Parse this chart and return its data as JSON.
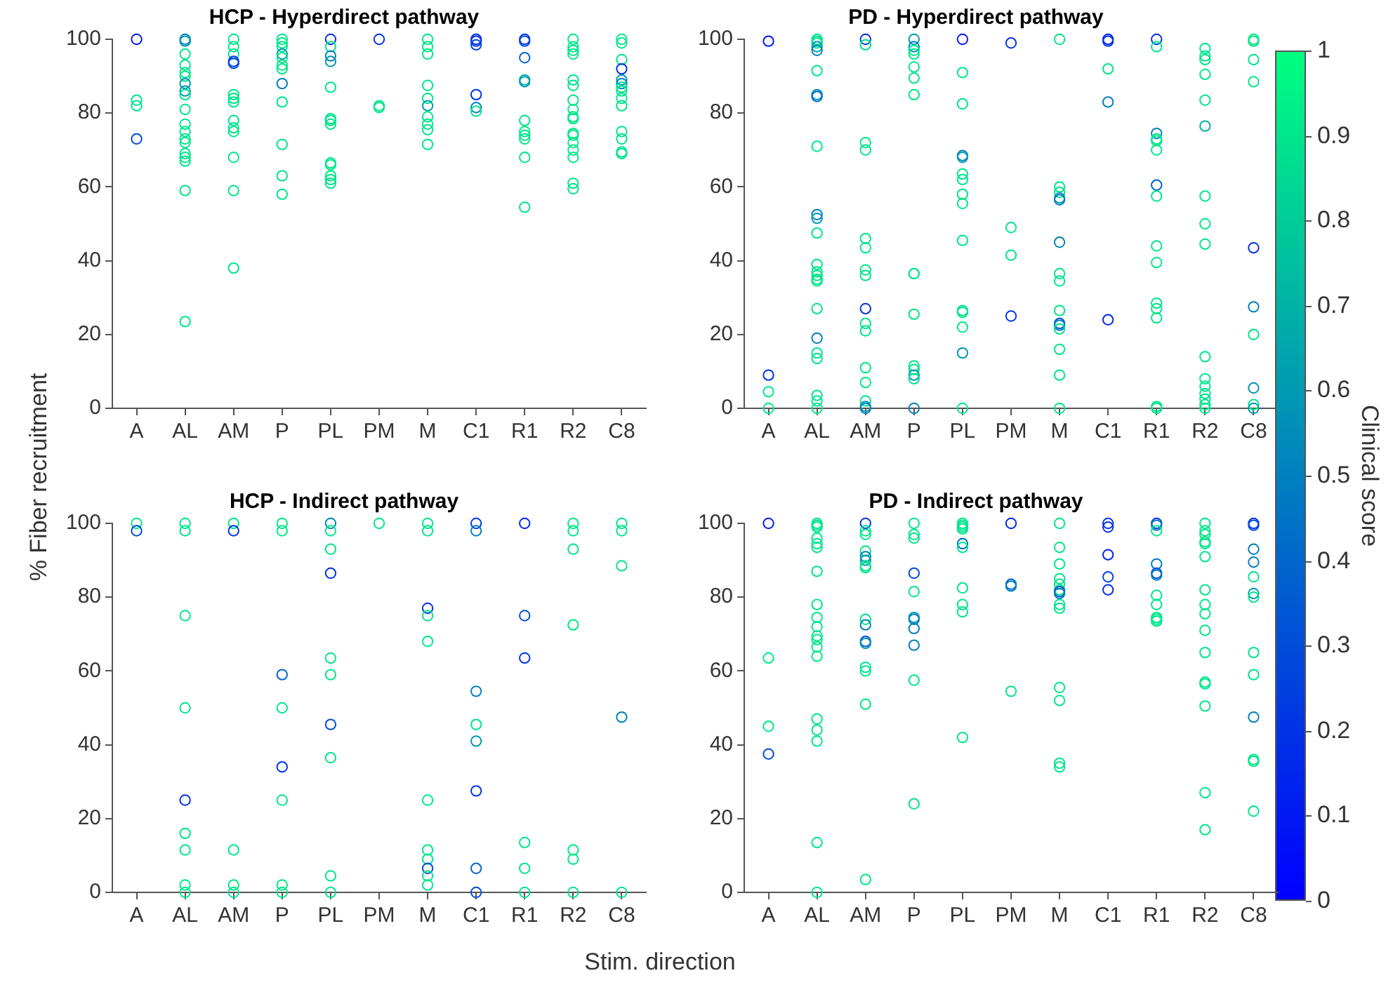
{
  "chart_data": [
    {
      "type": "scatter",
      "title": "HCP - Hyperdirect pathway",
      "ylabel": "% Fiber recruitment",
      "categories": [
        "A",
        "AL",
        "AM",
        "P",
        "PL",
        "PM",
        "M",
        "C1",
        "R1",
        "R2",
        "C8"
      ],
      "ylim": [
        0,
        100
      ],
      "yticks": [
        0,
        20,
        40,
        60,
        80,
        100
      ],
      "marker": "circle",
      "series": [
        {
          "type": "scatter",
          "x": [
            "A",
            "A",
            "A",
            "A",
            "AL",
            "AL",
            "AL",
            "AL",
            "AL",
            "AL",
            "AL",
            "AL",
            "AL",
            "AL",
            "AL",
            "AL",
            "AL",
            "AL",
            "AL",
            "AL",
            "AL",
            "AL",
            "AL",
            "AM",
            "AM",
            "AM",
            "AM",
            "AM",
            "AM",
            "AM",
            "AM",
            "AM",
            "AM",
            "AM",
            "AM",
            "AM",
            "AM",
            "P",
            "P",
            "P",
            "P",
            "P",
            "P",
            "P",
            "P",
            "P",
            "P",
            "P",
            "P",
            "PL",
            "PL",
            "PL",
            "PL",
            "PL",
            "PL",
            "PL",
            "PL",
            "PL",
            "PL",
            "PL",
            "PL",
            "PL",
            "PM",
            "PM",
            "PM",
            "M",
            "M",
            "M",
            "M",
            "M",
            "M",
            "M",
            "M",
            "M",
            "M",
            "C1",
            "C1",
            "C1",
            "C1",
            "C1",
            "C1",
            "R1",
            "R1",
            "R1",
            "R1",
            "R1",
            "R1",
            "R1",
            "R1",
            "R1",
            "R1",
            "R1",
            "R2",
            "R2",
            "R2",
            "R2",
            "R2",
            "R2",
            "R2",
            "R2",
            "R2",
            "R2",
            "R2",
            "R2",
            "R2",
            "R2",
            "R2",
            "R2",
            "R2",
            "C8",
            "C8",
            "C8",
            "C8",
            "C8",
            "C8",
            "C8",
            "C8",
            "C8",
            "C8",
            "C8",
            "C8",
            "C8",
            "C8"
          ],
          "values": [
            100,
            83.5,
            82,
            73,
            100,
            99.5,
            96,
            93,
            91,
            90,
            88,
            86,
            85,
            81,
            77,
            75,
            73,
            72,
            69,
            68,
            67,
            59,
            23.5,
            100,
            98,
            96,
            94,
            93.5,
            85,
            84,
            83,
            78,
            76,
            75,
            68,
            59,
            38,
            100,
            99,
            98,
            96,
            95,
            93,
            92,
            88,
            83,
            71.5,
            63,
            58,
            100,
            98,
            95.5,
            94,
            87,
            78.5,
            78,
            77,
            66.5,
            66,
            63,
            62,
            61,
            100,
            82,
            81.5,
            100,
            98,
            96,
            87.5,
            84,
            82,
            79,
            77,
            75.5,
            71.5,
            100,
            99.5,
            98.5,
            85,
            81.5,
            80.5,
            100,
            99.5,
            95,
            89,
            88.5,
            78,
            75,
            74,
            73,
            68,
            54.5,
            100,
            98,
            97,
            96,
            89,
            87.5,
            83.5,
            81,
            79,
            78.5,
            74.5,
            74,
            72,
            70,
            68,
            61,
            59.5,
            100,
            99,
            94.5,
            92,
            89,
            88,
            87,
            86,
            84,
            82,
            75,
            73,
            69.5,
            69
          ],
          "colors": [
            "#001af2",
            "#00e68c",
            "#00e68c",
            "#004dd9",
            "#0080bf",
            "#0099b3",
            "#00e68c",
            "#00e68c",
            "#00e68c",
            "#00e68c",
            "#0099b3",
            "#0099b3",
            "#00e68c",
            "#00e68c",
            "#00e68c",
            "#00e68c",
            "#00e68c",
            "#00e68c",
            "#00e68c",
            "#00e68c",
            "#00e68c",
            "#00e68c",
            "#00e68c",
            "#00e68c",
            "#00e68c",
            "#00e68c",
            "#0033e6",
            "#004dd9",
            "#00e68c",
            "#00e68c",
            "#00e68c",
            "#00e68c",
            "#00e68c",
            "#00e68c",
            "#00e68c",
            "#00e68c",
            "#00e68c",
            "#00e68c",
            "#00e68c",
            "#00e68c",
            "#0099b3",
            "#00e68c",
            "#00e68c",
            "#00e68c",
            "#0080bf",
            "#00e68c",
            "#00e68c",
            "#00e68c",
            "#00e68c",
            "#0033e6",
            "#00e68c",
            "#0080bf",
            "#0099b3",
            "#00e68c",
            "#00e68c",
            "#00e68c",
            "#00e68c",
            "#00e68c",
            "#00e68c",
            "#00e68c",
            "#00e68c",
            "#00e68c",
            "#0033e6",
            "#00e68c",
            "#00e68c",
            "#00e68c",
            "#00e68c",
            "#00e68c",
            "#00e68c",
            "#00e68c",
            "#0099b3",
            "#00e68c",
            "#00e68c",
            "#00e68c",
            "#00e68c",
            "#0026ec",
            "#0033e6",
            "#004dd9",
            "#0033e6",
            "#0080bf",
            "#00e68c",
            "#0033e6",
            "#004dd9",
            "#0066cc",
            "#00b3a6",
            "#0099b3",
            "#00e68c",
            "#00e68c",
            "#00e68c",
            "#00e68c",
            "#00e68c",
            "#00e68c",
            "#00e68c",
            "#00e68c",
            "#00e68c",
            "#00e68c",
            "#00e68c",
            "#00e68c",
            "#00e68c",
            "#00e68c",
            "#00e68c",
            "#00e68c",
            "#00e68c",
            "#00e68c",
            "#00e68c",
            "#00e68c",
            "#00e68c",
            "#00e68c",
            "#00e68c",
            "#00e68c",
            "#00e68c",
            "#00e68c",
            "#0033e6",
            "#0099b3",
            "#0080bf",
            "#00e68c",
            "#00e68c",
            "#00e68c",
            "#00e68c",
            "#00e68c",
            "#00e68c",
            "#00e68c",
            "#00e68c"
          ]
        }
      ]
    },
    {
      "type": "scatter",
      "title": "PD - Hyperdirect pathway",
      "clabel": "Clinical score",
      "clim": [
        0,
        1
      ],
      "cticks": [
        0,
        0.1,
        0.2,
        0.3,
        0.4,
        0.5,
        0.6,
        0.7,
        0.8,
        0.9,
        1
      ],
      "categories": [
        "A",
        "AL",
        "AM",
        "P",
        "PL",
        "PM",
        "M",
        "C1",
        "R1",
        "R2",
        "C8"
      ],
      "ylim": [
        0,
        100
      ],
      "yticks": [
        0,
        20,
        40,
        60,
        80,
        100
      ],
      "marker": "circle",
      "series": [
        {
          "type": "scatter",
          "x": [
            "A",
            "A",
            "A",
            "A",
            "AL",
            "AL",
            "AL",
            "AL",
            "AL",
            "AL",
            "AL",
            "AL",
            "AL",
            "AL",
            "AL",
            "AL",
            "AL",
            "AL",
            "AL",
            "AL",
            "AL",
            "AL",
            "AL",
            "AL",
            "AL",
            "AL",
            "AL",
            "AL",
            "AM",
            "AM",
            "AM",
            "AM",
            "AM",
            "AM",
            "AM",
            "AM",
            "AM",
            "AM",
            "AM",
            "AM",
            "AM",
            "AM",
            "AM",
            "AM",
            "P",
            "P",
            "P",
            "P",
            "P",
            "P",
            "P",
            "P",
            "P",
            "P",
            "P",
            "P",
            "P",
            "P",
            "P",
            "PL",
            "PL",
            "PL",
            "PL",
            "PL",
            "PL",
            "PL",
            "PL",
            "PL",
            "PL",
            "PL",
            "PL",
            "PL",
            "PL",
            "PL",
            "PM",
            "PM",
            "PM",
            "PM",
            "M",
            "M",
            "M",
            "M",
            "M",
            "M",
            "M",
            "M",
            "M",
            "M",
            "M",
            "M",
            "M",
            "M",
            "M",
            "C1",
            "C1",
            "C1",
            "C1",
            "C1",
            "R1",
            "R1",
            "R1",
            "R1",
            "R1",
            "R1",
            "R1",
            "R1",
            "R1",
            "R1",
            "R1",
            "R1",
            "R1",
            "R1",
            "R1",
            "R2",
            "R2",
            "R2",
            "R2",
            "R2",
            "R2",
            "R2",
            "R2",
            "R2",
            "R2",
            "R2",
            "R2",
            "R2",
            "R2",
            "R2",
            "R2",
            "C8",
            "C8",
            "C8",
            "C8",
            "C8",
            "C8",
            "C8",
            "C8",
            "C8",
            "C8"
          ],
          "values": [
            99.5,
            9,
            4.5,
            0,
            100,
            99.5,
            99,
            98,
            97,
            91.5,
            85,
            84.5,
            71,
            52.5,
            51.5,
            47.5,
            39,
            37,
            36,
            35,
            34.5,
            27,
            19,
            15,
            13.5,
            3.5,
            2,
            0,
            100,
            98.5,
            72,
            70,
            46,
            43.5,
            37.5,
            36,
            27,
            23,
            21,
            11,
            7,
            2,
            0.5,
            0,
            100,
            98,
            97,
            96,
            92.5,
            89.5,
            85,
            36.5,
            36.5,
            25.5,
            11.5,
            10.5,
            9,
            8,
            0,
            100,
            91,
            82.5,
            68.5,
            68,
            63.5,
            62,
            58,
            55.5,
            45.5,
            26.5,
            26,
            22,
            15,
            0,
            99,
            49,
            41.5,
            25,
            100,
            60,
            58.5,
            57,
            56.5,
            45,
            36.5,
            34.5,
            26.5,
            23,
            22.5,
            21.5,
            16,
            9,
            0,
            100,
            99.5,
            92,
            83,
            24,
            100,
            98,
            74.5,
            73,
            72.5,
            70,
            60.5,
            57.5,
            44,
            39.5,
            28.5,
            27,
            24.5,
            0.5,
            0,
            97.5,
            95.5,
            94.5,
            90.5,
            83.5,
            76.5,
            57.5,
            50,
            44.5,
            14,
            8,
            6,
            4,
            2.5,
            1,
            0,
            100,
            99.5,
            94.5,
            88.5,
            43.5,
            27.5,
            20,
            5.5,
            1,
            0
          ],
          "cvalues": [
            0.1,
            0.2,
            0.9,
            0.9,
            0.9,
            0.9,
            0.9,
            0.6,
            0.5,
            0.9,
            0.6,
            0.4,
            0.9,
            0.5,
            0.6,
            0.9,
            0.9,
            0.9,
            0.9,
            0.9,
            0.9,
            0.9,
            0.5,
            0.9,
            0.9,
            0.9,
            0.9,
            0.9,
            0.2,
            0.9,
            0.9,
            0.9,
            0.9,
            0.9,
            0.9,
            0.9,
            0.2,
            0.9,
            0.9,
            0.9,
            0.9,
            0.9,
            0.6,
            0.5,
            0.6,
            0.5,
            0.9,
            0.9,
            0.9,
            0.9,
            0.9,
            0.9,
            0.9,
            0.9,
            0.9,
            0.9,
            0.6,
            0.9,
            0.5,
            0.1,
            0.9,
            0.9,
            0.5,
            0.6,
            0.9,
            0.9,
            0.9,
            0.9,
            0.9,
            0.9,
            0.9,
            0.9,
            0.6,
            0.9,
            0.2,
            0.9,
            0.9,
            0.2,
            0.9,
            0.9,
            0.9,
            0.6,
            0.5,
            0.5,
            0.9,
            0.9,
            0.9,
            0.3,
            0.5,
            0.9,
            0.9,
            0.9,
            0.9,
            0.1,
            0.2,
            0.9,
            0.5,
            0.15,
            0.2,
            0.9,
            0.5,
            0.9,
            0.9,
            0.9,
            0.4,
            0.9,
            0.9,
            0.9,
            0.9,
            0.9,
            0.9,
            0.9,
            0.9,
            0.9,
            0.9,
            0.9,
            0.9,
            0.9,
            0.7,
            0.9,
            0.9,
            0.9,
            0.9,
            0.9,
            0.9,
            0.9,
            0.9,
            0.9,
            0.9,
            0.9,
            0.9,
            0.9,
            0.9,
            0.2,
            0.5,
            0.9,
            0.6,
            0.9,
            0.6
          ]
        }
      ]
    },
    {
      "type": "scatter",
      "title": "HCP - Indirect pathway",
      "xlabel": "Stim. direction",
      "categories": [
        "A",
        "AL",
        "AM",
        "P",
        "PL",
        "PM",
        "M",
        "C1",
        "R1",
        "R2",
        "C8"
      ],
      "ylim": [
        0,
        100
      ],
      "yticks": [
        0,
        20,
        40,
        60,
        80,
        100
      ],
      "marker": "circle",
      "series": [
        {
          "type": "scatter",
          "x": [
            "A",
            "A",
            "AL",
            "AL",
            "AL",
            "AL",
            "AL",
            "AL",
            "AL",
            "AL",
            "AL",
            "AM",
            "AM",
            "AM",
            "AM",
            "AM",
            "P",
            "P",
            "P",
            "P",
            "P",
            "P",
            "P",
            "P",
            "PL",
            "PL",
            "PL",
            "PL",
            "PL",
            "PL",
            "PL",
            "PL",
            "PL",
            "PL",
            "PM",
            "M",
            "M",
            "M",
            "M",
            "M",
            "M",
            "M",
            "M",
            "M",
            "M",
            "M",
            "C1",
            "C1",
            "C1",
            "C1",
            "C1",
            "C1",
            "C1",
            "C1",
            "R1",
            "R1",
            "R1",
            "R1",
            "R1",
            "R1",
            "R2",
            "R2",
            "R2",
            "R2",
            "R2",
            "R2",
            "R2",
            "C8",
            "C8",
            "C8",
            "C8",
            "C8"
          ],
          "values": [
            100,
            98,
            100,
            98,
            75,
            50,
            25,
            16,
            11.5,
            2,
            0,
            100,
            98,
            11.5,
            2,
            0,
            100,
            98,
            59,
            50,
            34,
            25,
            2,
            0,
            100,
            98,
            93,
            86.5,
            63.5,
            59,
            45.5,
            36.5,
            4.5,
            0,
            100,
            100,
            98,
            77,
            75,
            68,
            25,
            11.5,
            9,
            6.5,
            4.5,
            2,
            100,
            98,
            54.5,
            45.5,
            41,
            27.5,
            6.5,
            0,
            100,
            75,
            63.5,
            13.5,
            6.5,
            0,
            100,
            98,
            93,
            72.5,
            11.5,
            9,
            0,
            100,
            98,
            88.5,
            47.5,
            0
          ],
          "colors": [
            "#00e68c",
            "#004dd9",
            "#00e68c",
            "#00e68c",
            "#00e68c",
            "#00e68c",
            "#0033e6",
            "#00e68c",
            "#00e68c",
            "#00e68c",
            "#00e68c",
            "#00e68c",
            "#0033e6",
            "#00e68c",
            "#00e68c",
            "#00e68c",
            "#00e68c",
            "#00e68c",
            "#0066cc",
            "#00e68c",
            "#0033e6",
            "#00e68c",
            "#00e68c",
            "#00e68c",
            "#0080bf",
            "#00e68c",
            "#00e68c",
            "#0033e6",
            "#00e68c",
            "#00e68c",
            "#004dd9",
            "#00e68c",
            "#00e68c",
            "#00e68c",
            "#00e68c",
            "#00e68c",
            "#00e68c",
            "#0033e6",
            "#00e68c",
            "#00e68c",
            "#00e68c",
            "#00e68c",
            "#00e68c",
            "#004dd9",
            "#00e68c",
            "#00e68c",
            "#0033e6",
            "#0080bf",
            "#0080bf",
            "#00e68c",
            "#0099b3",
            "#0033e6",
            "#0066cc",
            "#004dd9",
            "#0026ec",
            "#004dd9",
            "#0033e6",
            "#00e68c",
            "#00e68c",
            "#00e68c",
            "#00e68c",
            "#00e68c",
            "#00e68c",
            "#00e68c",
            "#00e68c",
            "#00e68c",
            "#00e68c",
            "#00e68c",
            "#00e68c",
            "#00e68c",
            "#0080bf",
            "#00e68c"
          ]
        }
      ]
    },
    {
      "type": "scatter",
      "title": "PD - Indirect pathway",
      "categories": [
        "A",
        "AL",
        "AM",
        "P",
        "PL",
        "PM",
        "M",
        "C1",
        "R1",
        "R2",
        "C8"
      ],
      "ylim": [
        0,
        100
      ],
      "yticks": [
        0,
        20,
        40,
        60,
        80,
        100
      ],
      "marker": "circle",
      "series": [
        {
          "type": "scatter",
          "x": [
            "A",
            "A",
            "A",
            "A",
            "AL",
            "AL",
            "AL",
            "AL",
            "AL",
            "AL",
            "AL",
            "AL",
            "AL",
            "AL",
            "AL",
            "AL",
            "AL",
            "AL",
            "AL",
            "AL",
            "AL",
            "AL",
            "AL",
            "AM",
            "AM",
            "AM",
            "AM",
            "AM",
            "AM",
            "AM",
            "AM",
            "AM",
            "AM",
            "AM",
            "AM",
            "AM",
            "AM",
            "AM",
            "AM",
            "P",
            "P",
            "P",
            "P",
            "P",
            "P",
            "P",
            "P",
            "P",
            "P",
            "P",
            "PL",
            "PL",
            "PL",
            "PL",
            "PL",
            "PL",
            "PL",
            "PL",
            "PL",
            "PL",
            "PM",
            "PM",
            "PM",
            "PM",
            "M",
            "M",
            "M",
            "M",
            "M",
            "M",
            "M",
            "M",
            "M",
            "M",
            "M",
            "M",
            "M",
            "M",
            "C1",
            "C1",
            "C1",
            "C1",
            "C1",
            "R1",
            "R1",
            "R1",
            "R1",
            "R1",
            "R1",
            "R1",
            "R1",
            "R1",
            "R1",
            "R1",
            "R2",
            "R2",
            "R2",
            "R2",
            "R2",
            "R2",
            "R2",
            "R2",
            "R2",
            "R2",
            "R2",
            "R2",
            "R2",
            "R2",
            "R2",
            "R2",
            "C8",
            "C8",
            "C8",
            "C8",
            "C8",
            "C8",
            "C8",
            "C8",
            "C8",
            "C8",
            "C8",
            "C8",
            "C8"
          ],
          "values": [
            100,
            63.5,
            45,
            37.5,
            100,
            99.5,
            99,
            96,
            94.5,
            93.5,
            87,
            78,
            74.5,
            72,
            69.5,
            68.5,
            66.5,
            64,
            47,
            44,
            41,
            13.5,
            0,
            100,
            98,
            97,
            92.5,
            91,
            90,
            88.5,
            88,
            74,
            72.5,
            68,
            67.5,
            61,
            60,
            51,
            3.5,
            100,
            97,
            96,
            86.5,
            81.5,
            74.5,
            74,
            71.5,
            67,
            57.5,
            24,
            100,
            99.5,
            99,
            98.5,
            94.5,
            93.5,
            82.5,
            78,
            76,
            42,
            100,
            83.5,
            83,
            54.5,
            100,
            93.5,
            89,
            85,
            83.5,
            82,
            81.5,
            81,
            78,
            77,
            55.5,
            52,
            35,
            34,
            100,
            99,
            91.5,
            85.5,
            82,
            100,
            99.5,
            98,
            89,
            86.5,
            86,
            80.5,
            78,
            74.5,
            74,
            73.5,
            100,
            98,
            97,
            95,
            94.5,
            91,
            82,
            78,
            75.5,
            71,
            65,
            57,
            56.5,
            50.5,
            27,
            17,
            100,
            99.5,
            93,
            89.5,
            85.5,
            81,
            80,
            65,
            59,
            47.5,
            36,
            35.5,
            22
          ],
          "colors": [
            "#001af2",
            "#00e68c",
            "#00e68c",
            "#004dd9",
            "#00e68c",
            "#00e68c",
            "#00e68c",
            "#00e68c",
            "#00e68c",
            "#00e68c",
            "#00e68c",
            "#00e68c",
            "#00e68c",
            "#00e68c",
            "#00e68c",
            "#00e68c",
            "#00e68c",
            "#00e68c",
            "#00e68c",
            "#00e68c",
            "#00e68c",
            "#00e68c",
            "#00e68c",
            "#0033e6",
            "#00e68c",
            "#00e68c",
            "#00e68c",
            "#0080bf",
            "#0099b3",
            "#00e68c",
            "#00e68c",
            "#00e68c",
            "#0080bf",
            "#004dd9",
            "#0099b3",
            "#00e68c",
            "#00e68c",
            "#00e68c",
            "#00e68c",
            "#00e68c",
            "#00e68c",
            "#00e68c",
            "#004dd9",
            "#00e68c",
            "#0099b3",
            "#0080bf",
            "#0080bf",
            "#0080bf",
            "#00e68c",
            "#00e68c",
            "#00e68c",
            "#00e68c",
            "#00e68c",
            "#00e68c",
            "#0066cc",
            "#00e68c",
            "#00e68c",
            "#00e68c",
            "#00e68c",
            "#00e68c",
            "#0026ec",
            "#0066cc",
            "#0080bf",
            "#00e68c",
            "#00e68c",
            "#00e68c",
            "#00e68c",
            "#00e68c",
            "#00e68c",
            "#00e68c",
            "#004dd9",
            "#0080bf",
            "#00e68c",
            "#00e68c",
            "#00e68c",
            "#00e68c",
            "#00e68c",
            "#00e68c",
            "#0033e6",
            "#0033e6",
            "#0026ec",
            "#0040df",
            "#0033e6",
            "#0033e6",
            "#0080bf",
            "#00e68c",
            "#0080bf",
            "#004dd9",
            "#0080bf",
            "#00e68c",
            "#00e68c",
            "#00e68c",
            "#00e68c",
            "#00e68c",
            "#00e68c",
            "#00e68c",
            "#00e68c",
            "#00e68c",
            "#00e68c",
            "#00e68c",
            "#00e68c",
            "#00e68c",
            "#00e68c",
            "#00e68c",
            "#00e68c",
            "#00e68c",
            "#00e68c",
            "#00e68c",
            "#00e68c",
            "#00e68c",
            "#0033e6",
            "#004dd9",
            "#0080bf",
            "#0080bf",
            "#00e68c",
            "#0099b3",
            "#00e68c",
            "#00e68c",
            "#00e68c",
            "#0080bf",
            "#00e68c",
            "#00e68c",
            "#00e68c"
          ]
        }
      ]
    }
  ]
}
